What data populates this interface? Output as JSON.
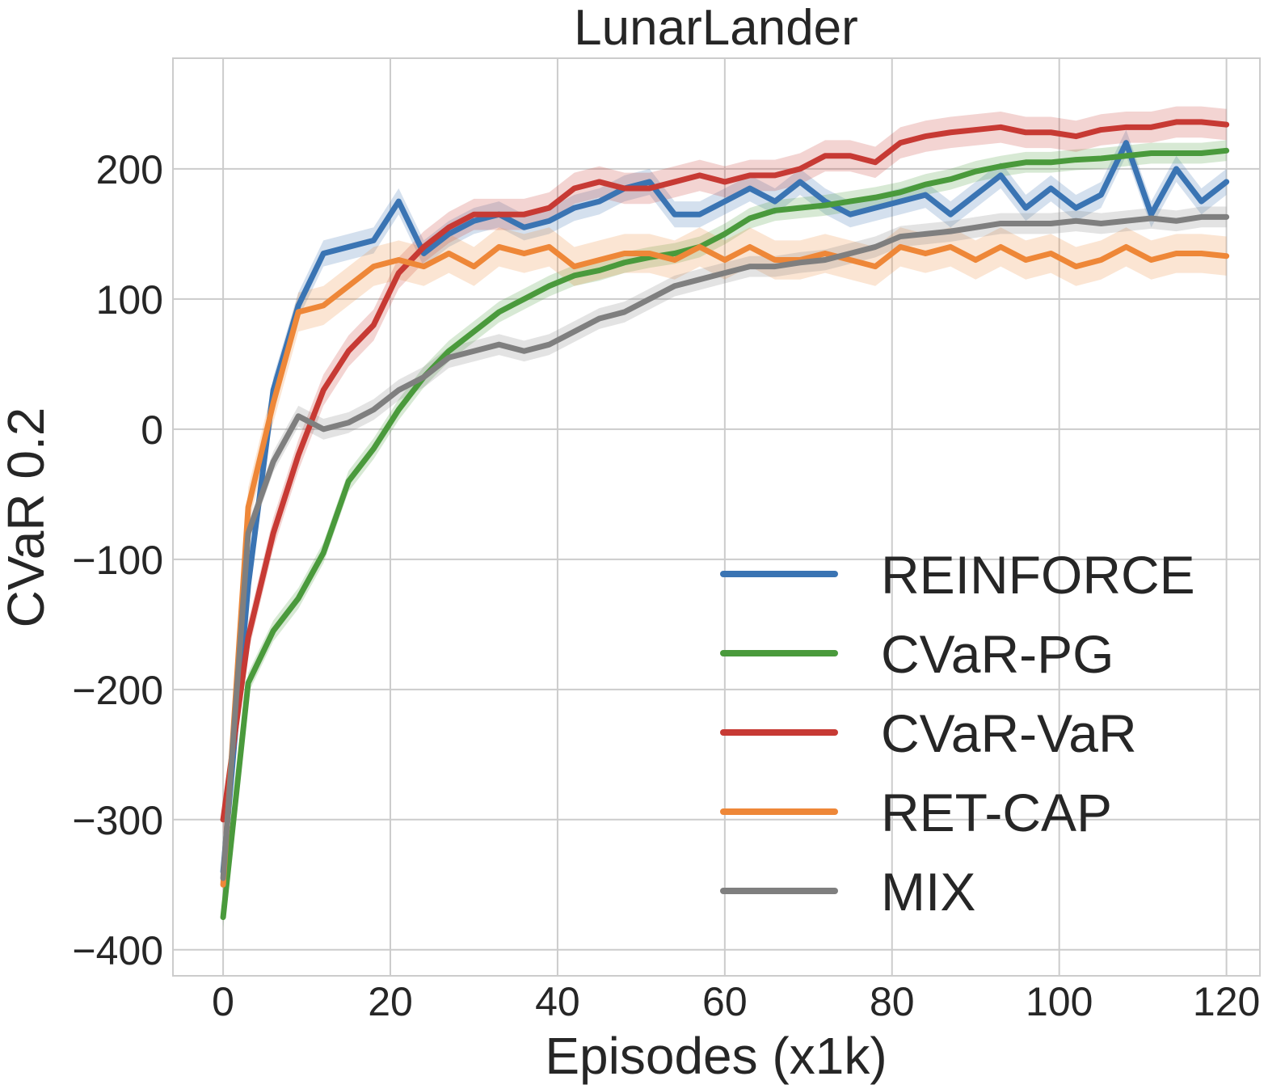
{
  "chart_data": {
    "type": "line",
    "title": "LunarLander",
    "xlabel": "Episodes (x1k)",
    "ylabel": "CVaR 0.2",
    "xlim": [
      -6,
      124
    ],
    "ylim": [
      -420,
      285
    ],
    "xticks": [
      0,
      20,
      40,
      60,
      80,
      100,
      120
    ],
    "yticks": [
      -400,
      -300,
      -200,
      -100,
      0,
      100,
      200
    ],
    "xtick_labels": [
      "0",
      "20",
      "40",
      "60",
      "80",
      "100",
      "120"
    ],
    "ytick_labels": [
      "−400",
      "−300",
      "−200",
      "−100",
      "0",
      "100",
      "200"
    ],
    "grid": true,
    "legend_position": "bottom-right",
    "x": [
      0,
      3,
      6,
      9,
      12,
      15,
      18,
      21,
      24,
      27,
      30,
      33,
      36,
      39,
      42,
      45,
      48,
      51,
      54,
      57,
      60,
      63,
      66,
      69,
      72,
      75,
      78,
      81,
      84,
      87,
      90,
      93,
      96,
      99,
      102,
      105,
      108,
      111,
      114,
      117,
      120
    ],
    "series": [
      {
        "name": "REINFORCE",
        "color": "#3a74b3",
        "values": [
          -340,
          -120,
          30,
          95,
          135,
          140,
          145,
          175,
          135,
          150,
          160,
          165,
          155,
          160,
          170,
          175,
          185,
          190,
          165,
          165,
          175,
          185,
          175,
          190,
          175,
          165,
          170,
          175,
          180,
          165,
          180,
          195,
          170,
          185,
          170,
          180,
          220,
          165,
          200,
          175,
          190
        ],
        "band": 10
      },
      {
        "name": "CVaR-PG",
        "color": "#4a9a3c",
        "values": [
          -375,
          -195,
          -155,
          -130,
          -95,
          -40,
          -15,
          15,
          40,
          60,
          75,
          90,
          100,
          110,
          118,
          122,
          128,
          132,
          135,
          140,
          150,
          162,
          168,
          170,
          172,
          175,
          178,
          182,
          188,
          192,
          198,
          202,
          205,
          205,
          207,
          208,
          210,
          212,
          212,
          212,
          214
        ],
        "band": 8
      },
      {
        "name": "CVaR-VaR",
        "color": "#c73a34",
        "values": [
          -300,
          -160,
          -80,
          -20,
          30,
          60,
          80,
          120,
          140,
          155,
          165,
          165,
          165,
          170,
          185,
          190,
          185,
          185,
          190,
          195,
          190,
          195,
          195,
          200,
          210,
          210,
          205,
          220,
          225,
          228,
          230,
          232,
          228,
          228,
          225,
          230,
          232,
          232,
          236,
          236,
          234
        ],
        "band": 12
      },
      {
        "name": "RET-CAP",
        "color": "#ee8738",
        "values": [
          -350,
          -60,
          20,
          90,
          95,
          110,
          125,
          130,
          125,
          135,
          125,
          140,
          135,
          140,
          125,
          130,
          135,
          135,
          130,
          140,
          130,
          140,
          130,
          130,
          135,
          130,
          125,
          140,
          135,
          140,
          130,
          140,
          130,
          135,
          125,
          130,
          140,
          130,
          135,
          135,
          133
        ],
        "band": 15
      },
      {
        "name": "MIX",
        "color": "#7f7f7f",
        "values": [
          -345,
          -80,
          -25,
          10,
          0,
          5,
          15,
          30,
          40,
          55,
          60,
          65,
          60,
          65,
          75,
          85,
          90,
          100,
          110,
          115,
          120,
          125,
          125,
          128,
          130,
          135,
          140,
          148,
          150,
          152,
          155,
          158,
          158,
          158,
          160,
          158,
          160,
          162,
          160,
          163,
          163
        ],
        "band": 8
      }
    ]
  }
}
